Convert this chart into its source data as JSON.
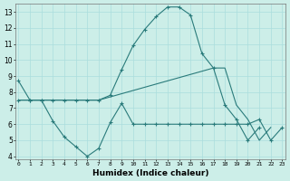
{
  "xlabel": "Humidex (Indice chaleur)",
  "x": [
    0,
    1,
    2,
    3,
    4,
    5,
    6,
    7,
    8,
    9,
    10,
    11,
    12,
    13,
    14,
    15,
    16,
    17,
    18,
    19,
    20,
    21,
    22,
    23
  ],
  "line1": [
    8.7,
    7.5,
    7.5,
    7.5,
    7.5,
    7.5,
    7.5,
    7.5,
    7.8,
    9.4,
    10.9,
    11.9,
    12.7,
    13.3,
    13.3,
    12.8,
    10.4,
    9.5,
    7.2,
    6.3,
    5.0,
    5.8,
    null,
    null
  ],
  "line2": [
    7.5,
    7.5,
    7.5,
    7.5,
    7.5,
    7.5,
    7.5,
    7.5,
    7.7,
    7.9,
    8.1,
    8.3,
    8.5,
    8.7,
    8.9,
    9.1,
    9.3,
    9.5,
    9.5,
    7.2,
    6.3,
    5.0,
    5.8,
    null
  ],
  "line3": [
    7.5,
    7.5,
    7.5,
    6.2,
    5.2,
    4.6,
    4.0,
    4.5,
    6.1,
    7.3,
    6.0,
    6.0,
    6.0,
    6.0,
    6.0,
    6.0,
    6.0,
    6.0,
    6.0,
    6.0,
    6.0,
    6.3,
    5.0,
    5.8
  ],
  "color": "#2a7b7b",
  "bg_color": "#cceee8",
  "grid_color": "#aadddd",
  "ylim": [
    3.8,
    13.5
  ],
  "xlim": [
    -0.3,
    23.3
  ],
  "yticks": [
    4,
    5,
    6,
    7,
    8,
    9,
    10,
    11,
    12,
    13
  ],
  "xticks": [
    0,
    1,
    2,
    3,
    4,
    5,
    6,
    7,
    8,
    9,
    10,
    11,
    12,
    13,
    14,
    15,
    16,
    17,
    18,
    19,
    20,
    21,
    22,
    23
  ]
}
